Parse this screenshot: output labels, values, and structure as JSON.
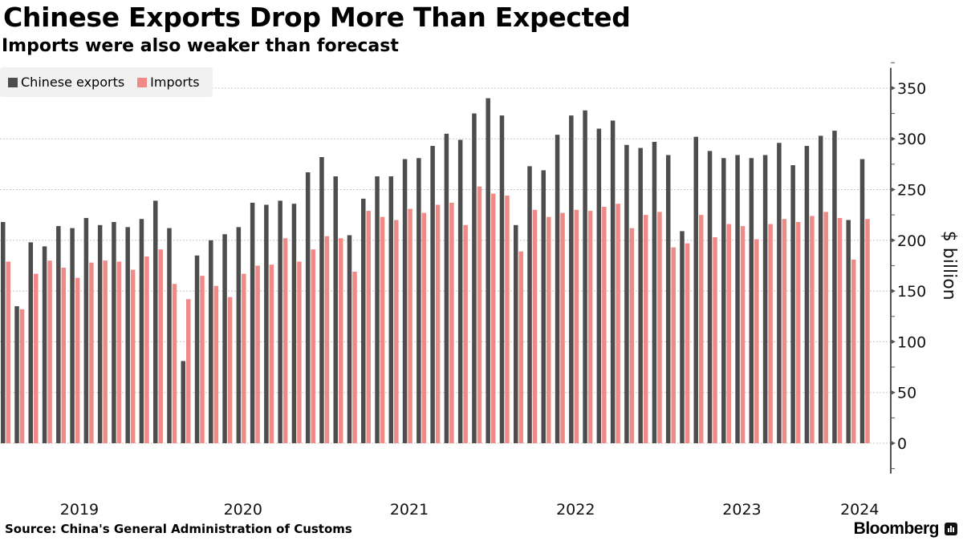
{
  "header": {
    "title": "Chinese Exports Drop More Than Expected",
    "subtitle": "Imports were also weaker than forecast"
  },
  "footer": {
    "source": "Source: China's General Administration of Customs",
    "brand": "Bloomberg",
    "brand_icon": "bloomberg-terminal-icon"
  },
  "colors": {
    "exports": "#4d4d4d",
    "imports": "#f08a87",
    "grid": "#c8c8c8",
    "axis": "#555555",
    "legend_bg": "#f1f1f1"
  },
  "chart_data": {
    "type": "bar",
    "title": "Chinese Exports Drop More Than Expected",
    "subtitle": "Imports were also weaker than forecast",
    "xlabel": "",
    "ylabel": "$ billion",
    "ylim": [
      -30,
      370
    ],
    "yticks": [
      0,
      50,
      100,
      150,
      200,
      250,
      300,
      350
    ],
    "grid": true,
    "legend_position": "top-left",
    "y_axis_side": "right",
    "x_tick_labels": [
      {
        "label": "2019",
        "at_index": 5.5
      },
      {
        "label": "2020",
        "at_index": 17.3
      },
      {
        "label": "2021",
        "at_index": 29.3
      },
      {
        "label": "2022",
        "at_index": 41.3
      },
      {
        "label": "2023",
        "at_index": 53.3
      },
      {
        "label": "2024",
        "at_index": 61.8
      }
    ],
    "categories": [
      "2019-01",
      "2019-02",
      "2019-03",
      "2019-04",
      "2019-05",
      "2019-06",
      "2019-07",
      "2019-08",
      "2019-09",
      "2019-10",
      "2019-11",
      "2019-12",
      "2020-01",
      "2020-02",
      "2020-03",
      "2020-04",
      "2020-05",
      "2020-06",
      "2020-07",
      "2020-08",
      "2020-09",
      "2020-10",
      "2020-11",
      "2020-12",
      "2021-01",
      "2021-02",
      "2021-03",
      "2021-04",
      "2021-05",
      "2021-06",
      "2021-07",
      "2021-08",
      "2021-09",
      "2021-10",
      "2021-11",
      "2021-12",
      "2022-01",
      "2022-02",
      "2022-03",
      "2022-04",
      "2022-05",
      "2022-06",
      "2022-07",
      "2022-08",
      "2022-09",
      "2022-10",
      "2022-11",
      "2022-12",
      "2023-01",
      "2023-02",
      "2023-03",
      "2023-04",
      "2023-05",
      "2023-06",
      "2023-07",
      "2023-08",
      "2023-09",
      "2023-10",
      "2023-11",
      "2023-12",
      "2024-01",
      "2024-02",
      "2024-03"
    ],
    "series": [
      {
        "name": "Chinese exports",
        "values": [
          218,
          135,
          198,
          194,
          214,
          212,
          222,
          215,
          218,
          213,
          221,
          239,
          212,
          81,
          185,
          200,
          206,
          213,
          237,
          235,
          239,
          236,
          267,
          282,
          263,
          205,
          241,
          263,
          263,
          280,
          281,
          293,
          305,
          299,
          325,
          340,
          323,
          215,
          273,
          269,
          304,
          323,
          328,
          310,
          318,
          294,
          291,
          297,
          284,
          209,
          302,
          288,
          281,
          284,
          281,
          284,
          296,
          274,
          293,
          303,
          308,
          220,
          280
        ]
      },
      {
        "name": "Imports",
        "values": [
          179,
          132,
          167,
          180,
          173,
          163,
          178,
          180,
          179,
          171,
          184,
          191,
          157,
          142,
          165,
          155,
          144,
          167,
          175,
          176,
          202,
          179,
          191,
          204,
          202,
          169,
          229,
          223,
          220,
          231,
          227,
          235,
          237,
          215,
          253,
          246,
          244,
          189,
          230,
          223,
          227,
          230,
          229,
          233,
          236,
          212,
          225,
          228,
          193,
          197,
          225,
          203,
          216,
          214,
          201,
          216,
          221,
          218,
          224,
          228,
          222,
          181,
          221
        ]
      }
    ]
  }
}
